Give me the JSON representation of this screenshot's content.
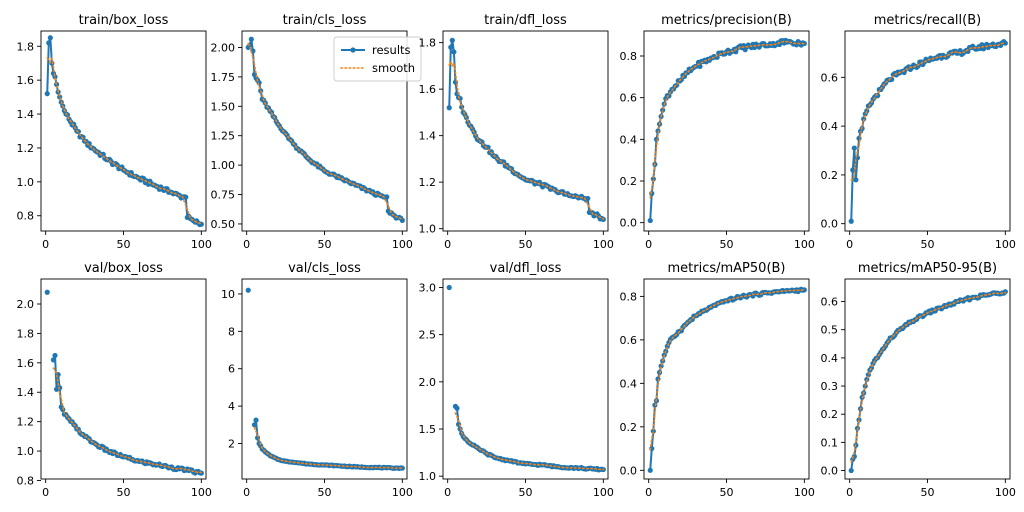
{
  "colors": {
    "results": "#1f77b4",
    "smooth": "#ff7f0e",
    "axes": "#000000"
  },
  "legend": {
    "location": "top-right",
    "panel": 1,
    "entries": [
      "results",
      "smooth"
    ]
  },
  "chart_data": [
    {
      "type": "line",
      "title": "train/box_loss",
      "xlim": [
        -3,
        103
      ],
      "ylim": [
        0.71,
        1.89
      ],
      "xticks": [
        0,
        50,
        100
      ],
      "yticks": [
        0.8,
        1.0,
        1.2,
        1.4,
        1.6,
        1.8
      ],
      "ytick_labels": [
        "0.8",
        "1.0",
        "1.2",
        "1.4",
        "1.6",
        "1.8"
      ],
      "anchors": [
        [
          1,
          1.52
        ],
        [
          2,
          1.82
        ],
        [
          3,
          1.85
        ],
        [
          4,
          1.7
        ],
        [
          5,
          1.64
        ],
        [
          6,
          1.62
        ],
        [
          8,
          1.53
        ],
        [
          10,
          1.47
        ],
        [
          12,
          1.42
        ],
        [
          15,
          1.37
        ],
        [
          20,
          1.3
        ],
        [
          25,
          1.24
        ],
        [
          30,
          1.2
        ],
        [
          40,
          1.13
        ],
        [
          50,
          1.07
        ],
        [
          60,
          1.02
        ],
        [
          70,
          0.98
        ],
        [
          80,
          0.94
        ],
        [
          88,
          0.91
        ],
        [
          90,
          0.91
        ],
        [
          91,
          0.79
        ],
        [
          95,
          0.77
        ],
        [
          100,
          0.75
        ]
      ],
      "noise": 0.012
    },
    {
      "type": "line",
      "title": "train/cls_loss",
      "xlim": [
        -3,
        103
      ],
      "ylim": [
        0.44,
        2.14
      ],
      "xticks": [
        0,
        50,
        100
      ],
      "yticks": [
        0.5,
        0.75,
        1.0,
        1.25,
        1.5,
        1.75,
        2.0
      ],
      "ytick_labels": [
        "0.50",
        "0.75",
        "1.00",
        "1.25",
        "1.50",
        "1.75",
        "2.00"
      ],
      "anchors": [
        [
          1,
          2.0
        ],
        [
          2,
          2.02
        ],
        [
          3,
          2.07
        ],
        [
          4,
          1.97
        ],
        [
          5,
          1.77
        ],
        [
          6,
          1.74
        ],
        [
          8,
          1.7
        ],
        [
          10,
          1.56
        ],
        [
          15,
          1.46
        ],
        [
          20,
          1.35
        ],
        [
          25,
          1.27
        ],
        [
          30,
          1.18
        ],
        [
          40,
          1.05
        ],
        [
          50,
          0.95
        ],
        [
          60,
          0.89
        ],
        [
          70,
          0.83
        ],
        [
          80,
          0.77
        ],
        [
          88,
          0.73
        ],
        [
          90,
          0.73
        ],
        [
          91,
          0.61
        ],
        [
          95,
          0.57
        ],
        [
          100,
          0.53
        ]
      ],
      "noise": 0.012
    },
    {
      "type": "line",
      "title": "train/dfl_loss",
      "xlim": [
        -3,
        103
      ],
      "ylim": [
        0.99,
        1.85
      ],
      "xticks": [
        0,
        50,
        100
      ],
      "yticks": [
        1.0,
        1.2,
        1.4,
        1.6,
        1.8
      ],
      "ytick_labels": [
        "1.0",
        "1.2",
        "1.4",
        "1.6",
        "1.8"
      ],
      "anchors": [
        [
          1,
          1.52
        ],
        [
          2,
          1.78
        ],
        [
          3,
          1.81
        ],
        [
          4,
          1.76
        ],
        [
          5,
          1.63
        ],
        [
          6,
          1.58
        ],
        [
          8,
          1.56
        ],
        [
          10,
          1.5
        ],
        [
          15,
          1.44
        ],
        [
          20,
          1.38
        ],
        [
          25,
          1.35
        ],
        [
          30,
          1.31
        ],
        [
          40,
          1.26
        ],
        [
          50,
          1.21
        ],
        [
          60,
          1.19
        ],
        [
          70,
          1.16
        ],
        [
          80,
          1.14
        ],
        [
          88,
          1.13
        ],
        [
          90,
          1.13
        ],
        [
          91,
          1.07
        ],
        [
          95,
          1.06
        ],
        [
          100,
          1.04
        ]
      ],
      "noise": 0.008
    },
    {
      "type": "line",
      "title": "metrics/precision(B)",
      "xlim": [
        -3,
        103
      ],
      "ylim": [
        -0.04,
        0.92
      ],
      "xticks": [
        0,
        50,
        100
      ],
      "yticks": [
        0.0,
        0.2,
        0.4,
        0.6,
        0.8
      ],
      "ytick_labels": [
        "0.0",
        "0.2",
        "0.4",
        "0.6",
        "0.8"
      ],
      "anchors": [
        [
          1,
          0.01
        ],
        [
          2,
          0.14
        ],
        [
          3,
          0.21
        ],
        [
          4,
          0.28
        ],
        [
          5,
          0.4
        ],
        [
          6,
          0.44
        ],
        [
          8,
          0.51
        ],
        [
          10,
          0.57
        ],
        [
          12,
          0.61
        ],
        [
          15,
          0.64
        ],
        [
          20,
          0.68
        ],
        [
          25,
          0.72
        ],
        [
          30,
          0.75
        ],
        [
          40,
          0.79
        ],
        [
          50,
          0.82
        ],
        [
          60,
          0.84
        ],
        [
          70,
          0.85
        ],
        [
          80,
          0.86
        ],
        [
          90,
          0.87
        ],
        [
          100,
          0.86
        ]
      ],
      "noise": 0.012
    },
    {
      "type": "line",
      "title": "metrics/recall(B)",
      "xlim": [
        -3,
        103
      ],
      "ylim": [
        -0.03,
        0.79
      ],
      "xticks": [
        0,
        50,
        100
      ],
      "yticks": [
        0.0,
        0.2,
        0.4,
        0.6
      ],
      "ytick_labels": [
        "0.0",
        "0.2",
        "0.4",
        "0.6"
      ],
      "anchors": [
        [
          1,
          0.01
        ],
        [
          2,
          0.22
        ],
        [
          3,
          0.31
        ],
        [
          4,
          0.18
        ],
        [
          5,
          0.27
        ],
        [
          6,
          0.35
        ],
        [
          8,
          0.39
        ],
        [
          10,
          0.45
        ],
        [
          15,
          0.51
        ],
        [
          20,
          0.55
        ],
        [
          25,
          0.59
        ],
        [
          30,
          0.61
        ],
        [
          40,
          0.64
        ],
        [
          50,
          0.67
        ],
        [
          60,
          0.69
        ],
        [
          70,
          0.7
        ],
        [
          80,
          0.72
        ],
        [
          90,
          0.73
        ],
        [
          100,
          0.74
        ]
      ],
      "noise": 0.01
    },
    {
      "type": "line",
      "title": "val/box_loss",
      "xlim": [
        -3,
        103
      ],
      "ylim": [
        0.81,
        2.17
      ],
      "xticks": [
        0,
        50,
        100
      ],
      "yticks": [
        0.8,
        1.0,
        1.2,
        1.4,
        1.6,
        1.8,
        2.0
      ],
      "ytick_labels": [
        "0.8",
        "1.0",
        "1.2",
        "1.4",
        "1.6",
        "1.8",
        "2.0"
      ],
      "gap_after_first": true,
      "anchors": [
        [
          1,
          2.08
        ],
        [
          5,
          1.62
        ],
        [
          6,
          1.65
        ],
        [
          7,
          1.42
        ],
        [
          8,
          1.52
        ],
        [
          9,
          1.43
        ],
        [
          10,
          1.3
        ],
        [
          12,
          1.25
        ],
        [
          15,
          1.22
        ],
        [
          20,
          1.15
        ],
        [
          25,
          1.1
        ],
        [
          30,
          1.06
        ],
        [
          40,
          1.0
        ],
        [
          50,
          0.96
        ],
        [
          60,
          0.93
        ],
        [
          70,
          0.91
        ],
        [
          80,
          0.89
        ],
        [
          90,
          0.87
        ],
        [
          100,
          0.85
        ]
      ],
      "noise": 0.01
    },
    {
      "type": "line",
      "title": "val/cls_loss",
      "xlim": [
        -3,
        103
      ],
      "ylim": [
        0.1,
        10.8
      ],
      "xticks": [
        0,
        50,
        100
      ],
      "yticks": [
        2,
        4,
        6,
        8,
        10
      ],
      "ytick_labels": [
        "2",
        "4",
        "6",
        "8",
        "10"
      ],
      "gap_after_first": true,
      "anchors": [
        [
          1,
          10.2
        ],
        [
          5,
          3.0
        ],
        [
          6,
          3.25
        ],
        [
          7,
          2.3
        ],
        [
          8,
          2.0
        ],
        [
          10,
          1.7
        ],
        [
          12,
          1.55
        ],
        [
          15,
          1.35
        ],
        [
          20,
          1.15
        ],
        [
          25,
          1.05
        ],
        [
          30,
          1.0
        ],
        [
          40,
          0.9
        ],
        [
          50,
          0.85
        ],
        [
          60,
          0.8
        ],
        [
          70,
          0.75
        ],
        [
          80,
          0.72
        ],
        [
          90,
          0.7
        ],
        [
          100,
          0.68
        ]
      ],
      "noise": 0.02
    },
    {
      "type": "line",
      "title": "val/dfl_loss",
      "xlim": [
        -3,
        103
      ],
      "ylim": [
        0.97,
        3.09
      ],
      "xticks": [
        0,
        50,
        100
      ],
      "yticks": [
        1.0,
        1.5,
        2.0,
        2.5,
        3.0
      ],
      "ytick_labels": [
        "1.0",
        "1.5",
        "2.0",
        "2.5",
        "3.0"
      ],
      "gap_after_first": true,
      "anchors": [
        [
          1,
          3.0
        ],
        [
          5,
          1.74
        ],
        [
          6,
          1.72
        ],
        [
          7,
          1.55
        ],
        [
          8,
          1.5
        ],
        [
          10,
          1.42
        ],
        [
          15,
          1.34
        ],
        [
          20,
          1.29
        ],
        [
          25,
          1.24
        ],
        [
          30,
          1.2
        ],
        [
          40,
          1.16
        ],
        [
          50,
          1.13
        ],
        [
          60,
          1.12
        ],
        [
          70,
          1.1
        ],
        [
          80,
          1.09
        ],
        [
          90,
          1.08
        ],
        [
          100,
          1.07
        ]
      ],
      "noise": 0.008
    },
    {
      "type": "line",
      "title": "metrics/mAP50(B)",
      "xlim": [
        -3,
        103
      ],
      "ylim": [
        -0.04,
        0.88
      ],
      "xticks": [
        0,
        50,
        100
      ],
      "yticks": [
        0.0,
        0.2,
        0.4,
        0.6,
        0.8
      ],
      "ytick_labels": [
        "0.0",
        "0.2",
        "0.4",
        "0.6",
        "0.8"
      ],
      "anchors": [
        [
          1,
          0.0
        ],
        [
          2,
          0.1
        ],
        [
          3,
          0.18
        ],
        [
          4,
          0.3
        ],
        [
          5,
          0.32
        ],
        [
          6,
          0.42
        ],
        [
          8,
          0.48
        ],
        [
          10,
          0.53
        ],
        [
          12,
          0.57
        ],
        [
          15,
          0.61
        ],
        [
          20,
          0.64
        ],
        [
          25,
          0.68
        ],
        [
          30,
          0.71
        ],
        [
          40,
          0.75
        ],
        [
          50,
          0.78
        ],
        [
          60,
          0.8
        ],
        [
          70,
          0.81
        ],
        [
          80,
          0.82
        ],
        [
          90,
          0.825
        ],
        [
          100,
          0.83
        ]
      ],
      "noise": 0.006
    },
    {
      "type": "line",
      "title": "metrics/mAP50-95(B)",
      "xlim": [
        -3,
        103
      ],
      "ylim": [
        -0.03,
        0.68
      ],
      "xticks": [
        0,
        50,
        100
      ],
      "yticks": [
        0.0,
        0.1,
        0.2,
        0.3,
        0.4,
        0.5,
        0.6
      ],
      "ytick_labels": [
        "0.0",
        "0.1",
        "0.2",
        "0.3",
        "0.4",
        "0.5",
        "0.6"
      ],
      "anchors": [
        [
          1,
          0.0
        ],
        [
          2,
          0.04
        ],
        [
          3,
          0.05
        ],
        [
          4,
          0.09
        ],
        [
          5,
          0.15
        ],
        [
          6,
          0.18
        ],
        [
          8,
          0.26
        ],
        [
          10,
          0.3
        ],
        [
          12,
          0.34
        ],
        [
          15,
          0.38
        ],
        [
          20,
          0.42
        ],
        [
          25,
          0.46
        ],
        [
          30,
          0.49
        ],
        [
          40,
          0.53
        ],
        [
          50,
          0.56
        ],
        [
          60,
          0.58
        ],
        [
          70,
          0.6
        ],
        [
          80,
          0.615
        ],
        [
          90,
          0.625
        ],
        [
          100,
          0.635
        ]
      ],
      "noise": 0.005
    }
  ]
}
